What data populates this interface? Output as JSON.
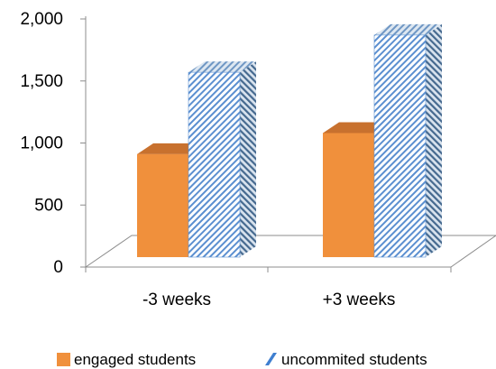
{
  "chart_data": {
    "type": "bar",
    "style": "3d-clustered-column",
    "title": "",
    "xlabel": "",
    "ylabel": "",
    "categories": [
      "-3 weeks",
      "+3 weeks"
    ],
    "series": [
      {
        "name": "engaged students",
        "values": [
          830,
          1000
        ],
        "color": "#f0903c",
        "pattern": "solid"
      },
      {
        "name": "uncommited students",
        "values": [
          1490,
          1790
        ],
        "color": "#5b8fd0",
        "pattern": "diagonal-stripes"
      }
    ],
    "yticks": [
      "0",
      "500",
      "1,000",
      "1,500",
      "2,000"
    ],
    "ylim": [
      0,
      2000
    ],
    "grid": false,
    "legend_position": "bottom"
  }
}
